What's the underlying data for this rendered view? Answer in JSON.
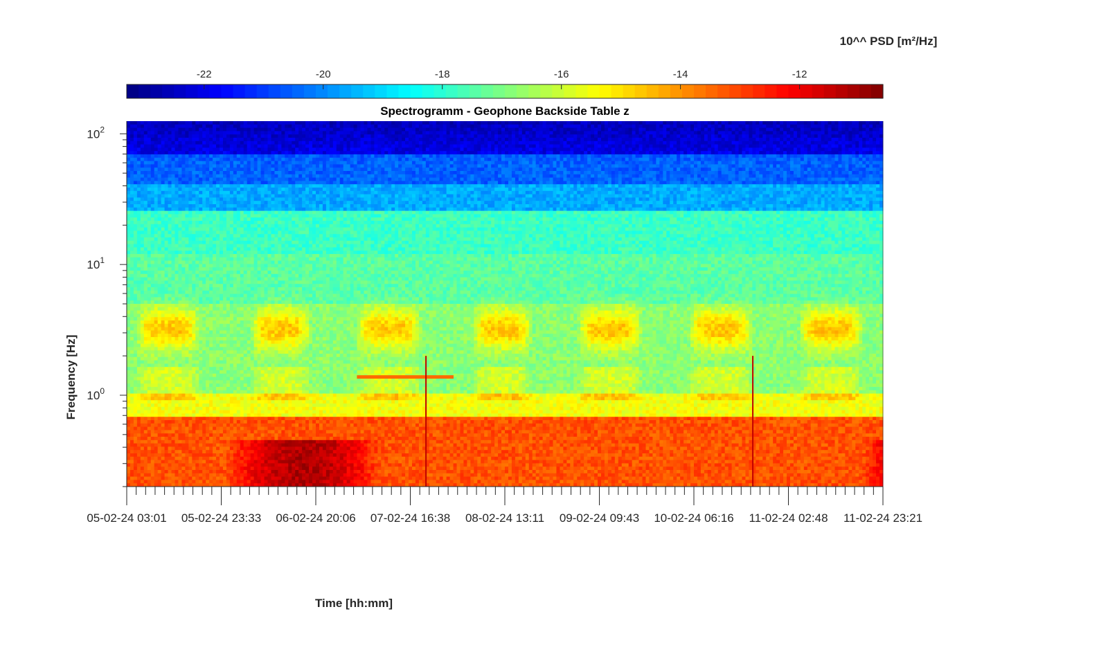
{
  "chart_data": {
    "type": "heatmap",
    "title": "Spectrogramm - Geophone Backside Table z",
    "xlabel": "Time [hh:mm]",
    "ylabel": "Frequency [Hz]",
    "colorbar_label": "10^^ PSD [m²/Hz]",
    "colormap": "jet",
    "color_range": [
      -23.3,
      -10.6
    ],
    "colorbar_ticks": [
      "-22",
      "-20",
      "-18",
      "-16",
      "-14",
      "-12"
    ],
    "colorbar_tick_values": [
      -22,
      -20,
      -18,
      -16,
      -14,
      -12
    ],
    "y_scale": "log",
    "ylim": [
      0.2,
      125
    ],
    "y_ticks": [
      {
        "value": 1,
        "base": "10",
        "exp": "0"
      },
      {
        "value": 10,
        "base": "10",
        "exp": "1"
      },
      {
        "value": 100,
        "base": "10",
        "exp": "2"
      }
    ],
    "x_ticks": [
      "05-02-24 03:01",
      "05-02-24 23:33",
      "06-02-24 20:06",
      "07-02-24 16:38",
      "08-02-24 13:11",
      "09-02-24 09:43",
      "10-02-24 06:16",
      "11-02-24 02:48",
      "11-02-24 23:21"
    ],
    "x_range": [
      "05-02-24 03:01",
      "11-02-24 23:21"
    ],
    "minor_x_ticks_per_major": 10,
    "grid": false,
    "features": {
      "background_bands": [
        {
          "f_low": 70,
          "f_high": 125,
          "level": -21.8
        },
        {
          "f_low": 40,
          "f_high": 70,
          "level": -20.5
        },
        {
          "f_low": 25,
          "f_high": 40,
          "level": -19.6
        },
        {
          "f_low": 12,
          "f_high": 25,
          "level": -17.8
        },
        {
          "f_low": 5,
          "f_high": 12,
          "level": -17.4
        },
        {
          "f_low": 1.05,
          "f_high": 5,
          "level": -16.8
        },
        {
          "f_low": 0.7,
          "f_high": 1.05,
          "level": -15.5
        },
        {
          "f_low": 0.2,
          "f_high": 0.7,
          "level": -13.2
        }
      ],
      "day_activity_windows_hours": [
        [
          2,
          16
        ],
        [
          27,
          40
        ],
        [
          50,
          64
        ],
        [
          75,
          88
        ],
        [
          98,
          112
        ],
        [
          122,
          136
        ],
        [
          146,
          160
        ]
      ],
      "activity_peak_frequency_hz": 3.2,
      "narrowband_line": {
        "freq_hz": 1.38,
        "t_start_h": 50,
        "t_end_h": 71,
        "level": -13.5
      },
      "transients_hours": [
        65,
        136
      ],
      "strong_low_freq_periods_hours": [
        [
          22,
          55
        ],
        [
          160,
          185
        ]
      ]
    }
  }
}
